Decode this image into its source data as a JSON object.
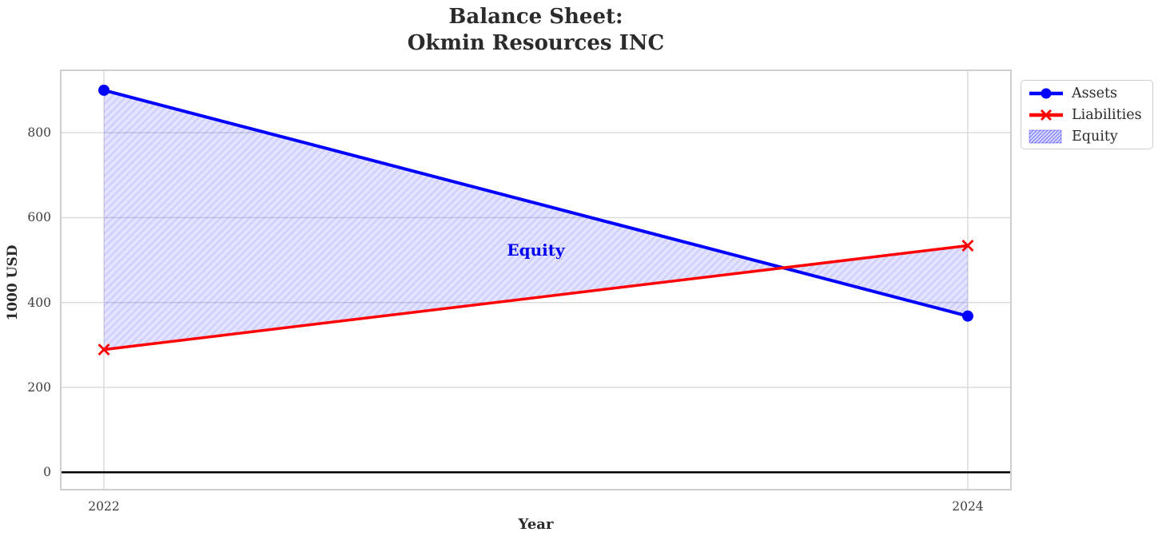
{
  "chart_data": {
    "type": "line",
    "title": "Balance Sheet:\nOkmin Resources INC",
    "title_lines": [
      "Balance Sheet:",
      "Okmin Resources INC"
    ],
    "xlabel": "Year",
    "ylabel": "1000 USD",
    "x": [
      2022,
      2024
    ],
    "series": [
      {
        "name": "Assets",
        "values": [
          900,
          368
        ],
        "color": "#0000ff",
        "marker": "circle",
        "line_width": 4
      },
      {
        "name": "Liabilities",
        "values": [
          289,
          534
        ],
        "color": "#ff0000",
        "marker": "x",
        "line_width": 3.5
      }
    ],
    "fill_between": {
      "name": "Equity",
      "between": [
        "Assets",
        "Liabilities"
      ],
      "derived_values": [
        611,
        -166
      ],
      "facecolor": "rgba(0,0,255,0.11)",
      "hatch": "/",
      "hatch_color": "rgba(0,0,255,0.10)"
    },
    "annotation": {
      "text": "Equity",
      "x": 2023,
      "y": 523,
      "color": "#0000ee"
    },
    "axes": {
      "xlim": [
        2021.9,
        2024.1
      ],
      "ylim": [
        -41,
        947
      ],
      "xticks": [
        {
          "value": 2022,
          "label": "2022"
        },
        {
          "value": 2024,
          "label": "2024"
        }
      ],
      "yticks": [
        {
          "value": 0,
          "label": "0"
        },
        {
          "value": 200,
          "label": "200"
        },
        {
          "value": 400,
          "label": "400"
        },
        {
          "value": 600,
          "label": "600"
        },
        {
          "value": 800,
          "label": "800"
        }
      ],
      "grid": true,
      "grid_color": "#d9d9d9",
      "spine_color": "#cfcfcf",
      "zero_line": {
        "value": 0,
        "color": "#000000",
        "width": 2.5
      }
    },
    "legend": {
      "position": "upper-right-outside",
      "entries": [
        "Assets",
        "Liabilities",
        "Equity"
      ]
    }
  }
}
